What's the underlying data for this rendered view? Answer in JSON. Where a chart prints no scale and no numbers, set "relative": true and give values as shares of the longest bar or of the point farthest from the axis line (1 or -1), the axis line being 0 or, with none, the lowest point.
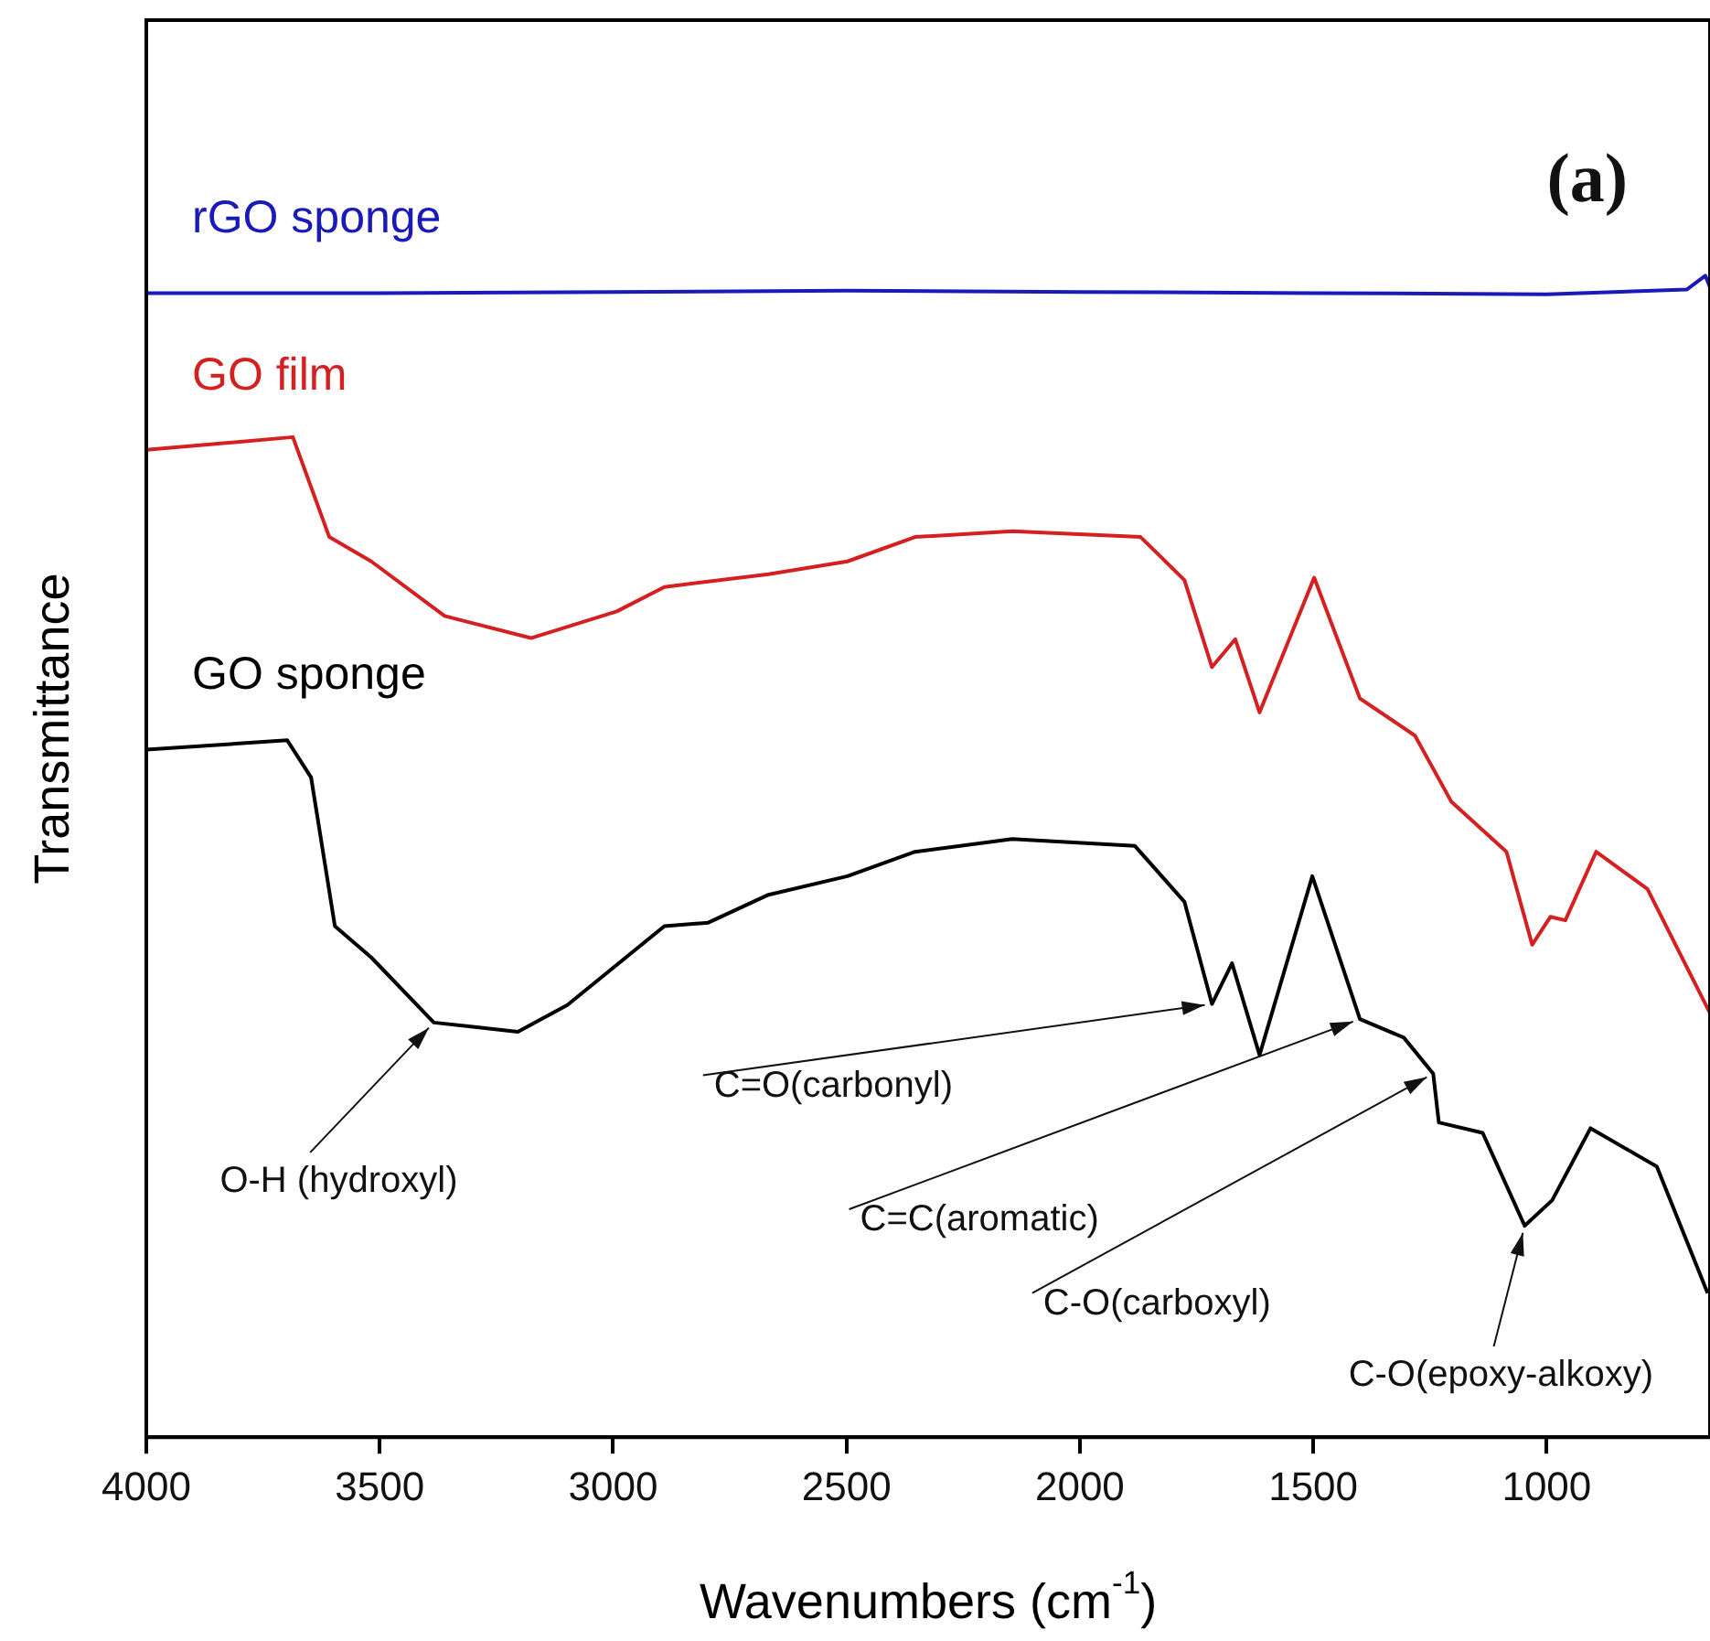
{
  "chart_data": {
    "type": "line",
    "xlabel": "Wavenumbers (cm$^{-1}$)",
    "ylabel": "Transmittance",
    "relative": true,
    "legend": false,
    "grid": false,
    "xlim": [
      4000,
      650
    ],
    "xticks": [
      4000,
      3500,
      3000,
      2500,
      2000,
      1500,
      1000
    ],
    "series": [
      {
        "name": "rGO sponge",
        "color": "#1a1ab8",
        "x": [
          4000,
          3500,
          3000,
          2500,
          2000,
          1500,
          1000,
          700,
          660,
          650
        ],
        "values": [
          0.985,
          0.985,
          0.986,
          0.987,
          0.986,
          0.985,
          0.984,
          0.988,
          1.0,
          0.99
        ]
      },
      {
        "name": "GO film",
        "color": "#d42020",
        "x": [
          4000,
          3686,
          3608,
          3518,
          3361,
          3176,
          2992,
          2890,
          2667,
          2498,
          2353,
          2145,
          1870,
          1776,
          1717,
          1667,
          1615,
          1498,
          1400,
          1282,
          1204,
          1086,
          1031,
          992,
          960,
          894,
          784,
          650
        ],
        "values": [
          0.85,
          0.861,
          0.775,
          0.754,
          0.707,
          0.688,
          0.711,
          0.732,
          0.743,
          0.754,
          0.775,
          0.78,
          0.775,
          0.738,
          0.663,
          0.687,
          0.624,
          0.74,
          0.636,
          0.604,
          0.547,
          0.504,
          0.424,
          0.448,
          0.445,
          0.504,
          0.472,
          0.365
        ]
      },
      {
        "name": "GO sponge",
        "color": "#000000",
        "x": [
          4000,
          3698,
          3647,
          3596,
          3518,
          3384,
          3204,
          3098,
          2890,
          2796,
          2667,
          2498,
          2353,
          2145,
          1882,
          1776,
          1717,
          1674,
          1615,
          1502,
          1400,
          1306,
          1243,
          1231,
          1137,
          1047,
          988,
          906,
          764,
          655
        ],
        "values": [
          0.592,
          0.6,
          0.568,
          0.44,
          0.413,
          0.357,
          0.349,
          0.372,
          0.44,
          0.443,
          0.467,
          0.483,
          0.504,
          0.515,
          0.509,
          0.461,
          0.373,
          0.408,
          0.329,
          0.483,
          0.36,
          0.344,
          0.313,
          0.271,
          0.262,
          0.182,
          0.204,
          0.266,
          0.233,
          0.124
        ]
      }
    ],
    "annotations": [
      "(a)",
      {
        "text": "O-H (hydroxyl)",
        "x": 3384,
        "y": 0.357
      },
      {
        "text": "C=O(carbonyl)",
        "x": 1717,
        "y": 0.373
      },
      {
        "text": "C=C(aromatic)",
        "x": 1400,
        "y": 0.36
      },
      {
        "text": "C-O(carboxyl)",
        "x": 1243,
        "y": 0.313
      },
      {
        "text": "C-O(epoxy-alkoxy)",
        "x": 1047,
        "y": 0.182
      }
    ]
  }
}
